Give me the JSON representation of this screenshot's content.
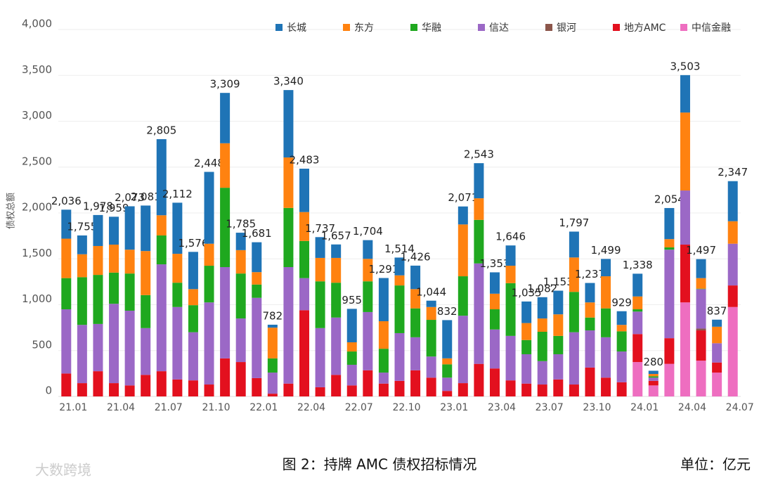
{
  "chart_data": {
    "type": "stacked-bar",
    "y_label": "债权总额",
    "caption": "图 2：持牌 AMC 债权招标情况",
    "unit": "单位：亿元",
    "watermark": "大数跨境",
    "categories": [
      "21.01",
      null,
      null,
      "21.04",
      null,
      null,
      "21.07",
      null,
      null,
      "21.10",
      null,
      null,
      "22.01",
      null,
      null,
      "22.04",
      null,
      null,
      "22.07",
      null,
      null,
      "22.10",
      null,
      null,
      "23.01",
      null,
      null,
      "23.04",
      null,
      null,
      "23.07",
      null,
      null,
      "23.10",
      null,
      null,
      "24.01",
      null,
      null,
      "24.04",
      null,
      null,
      "24.07"
    ],
    "series": [
      {
        "name": "中信金融",
        "color": "#ee6ec0",
        "values": [
          0,
          0,
          0,
          0,
          0,
          0,
          0,
          0,
          0,
          0,
          0,
          0,
          0,
          0,
          0,
          0,
          0,
          0,
          0,
          0,
          0,
          0,
          0,
          0,
          0,
          0,
          0,
          0,
          0,
          0,
          0,
          0,
          0,
          0,
          0,
          0,
          375,
          120,
          355,
          1025,
          390,
          260,
          975
        ]
      },
      {
        "name": "地方AMC",
        "color": "#e3101e",
        "values": [
          250,
          145,
          275,
          145,
          120,
          235,
          275,
          185,
          175,
          130,
          415,
          375,
          200,
          30,
          140,
          940,
          100,
          235,
          120,
          285,
          140,
          170,
          285,
          205,
          60,
          145,
          355,
          305,
          175,
          140,
          130,
          185,
          130,
          315,
          205,
          155,
          305,
          50,
          280,
          630,
          330,
          110,
          235
        ]
      },
      {
        "name": "银河",
        "color": "#8c564b",
        "values": [
          0,
          0,
          0,
          0,
          0,
          0,
          0,
          0,
          0,
          0,
          0,
          0,
          0,
          0,
          0,
          0,
          0,
          0,
          0,
          0,
          0,
          0,
          0,
          0,
          0,
          0,
          0,
          0,
          0,
          0,
          0,
          0,
          0,
          0,
          0,
          0,
          0,
          0,
          0,
          0,
          20,
          0,
          0
        ]
      },
      {
        "name": "信达",
        "color": "#9b68c6",
        "values": [
          700,
          635,
          515,
          865,
          815,
          510,
          1165,
          790,
          525,
          895,
          995,
          475,
          875,
          230,
          1270,
          350,
          645,
          625,
          225,
          635,
          120,
          520,
          360,
          230,
          145,
          735,
          1095,
          425,
          485,
          320,
          255,
          275,
          570,
          405,
          440,
          335,
          245,
          35,
          965,
          590,
          430,
          210,
          455
        ]
      },
      {
        "name": "华融",
        "color": "#1fa81f",
        "values": [
          340,
          520,
          535,
          340,
          405,
          360,
          315,
          265,
          295,
          400,
          865,
          490,
          145,
          155,
          645,
          405,
          510,
          380,
          145,
          335,
          260,
          520,
          315,
          400,
          145,
          430,
          475,
          220,
          575,
          155,
          320,
          200,
          440,
          140,
          315,
          220,
          25,
          15,
          25,
          0,
          5,
          0,
          0
        ]
      },
      {
        "name": "东方",
        "color": "#ff8210",
        "values": [
          430,
          250,
          315,
          305,
          260,
          480,
          220,
          315,
          175,
          240,
          485,
          255,
          135,
          335,
          550,
          315,
          255,
          270,
          100,
          245,
          300,
          110,
          210,
          140,
          65,
          565,
          235,
          170,
          190,
          185,
          145,
          235,
          375,
          165,
          350,
          70,
          140,
          25,
          90,
          850,
          115,
          180,
          245
        ]
      },
      {
        "name": "长城",
        "color": "#1f74b6",
        "values": [
          316,
          205,
          338,
          304,
          473,
          496,
          830,
          557,
          406,
          783,
          549,
          190,
          326,
          32,
          735,
          473,
          227,
          147,
          365,
          204,
          471,
          194,
          256,
          69,
          417,
          196,
          383,
          233,
          221,
          235,
          232,
          258,
          282,
          212,
          189,
          149,
          248,
          35,
          339,
          408,
          207,
          77,
          437
        ]
      }
    ],
    "totals": {
      "values": [
        2036,
        1755,
        1978,
        1959,
        2073,
        2081,
        2805,
        2112,
        1576,
        2448,
        3309,
        1785,
        1681,
        782,
        3340,
        2483,
        1737,
        1657,
        955,
        1704,
        1291,
        1514,
        1426,
        1044,
        832,
        2071,
        2543,
        1353,
        1646,
        1035,
        1082,
        1153,
        1797,
        1237,
        1499,
        929,
        1338,
        280,
        2054,
        3503,
        1497,
        837,
        2347
      ],
      "value_labels": [
        "2,036",
        "1,755",
        "1,978",
        "1,959",
        "2,073",
        "2,081",
        "2,805",
        "2,112",
        "1,576",
        "2,448",
        "3,309",
        "1,785",
        "1,681",
        "782",
        "3,340",
        "2,483",
        "1,737",
        "1,657",
        "955",
        "1,704",
        "1,291",
        "1,514",
        "1,426",
        "1,044",
        "832",
        "2,071",
        "2,543",
        "1,353",
        "1,646",
        "1,035",
        "1,082",
        "1,153",
        "1,797",
        "1,237",
        "1,499",
        "929",
        "1,338",
        "280",
        "2,054",
        "3,503",
        "1,497",
        "837",
        "2,347"
      ]
    },
    "ylim": [
      0,
      4000
    ],
    "yticks": [
      0,
      500,
      {
        "value": 1000,
        "label": "1,000"
      },
      {
        "value": 1500,
        "label": "1,500"
      },
      {
        "value": 2000,
        "label": "2,000"
      },
      {
        "value": 2500,
        "label": "2,500"
      },
      {
        "value": 3000,
        "label": "3,000"
      },
      {
        "value": 3500,
        "label": "3,500"
      },
      {
        "value": 4000,
        "label": "4,000"
      }
    ],
    "grid": true
  }
}
